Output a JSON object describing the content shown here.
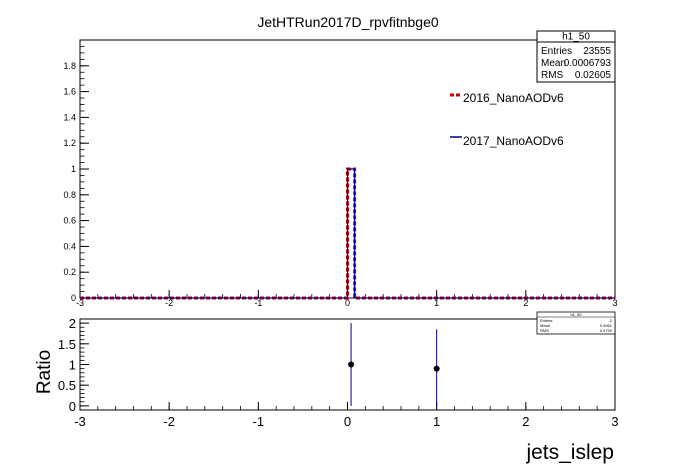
{
  "title": "JetHTRun2017D_rpvfitnbge0",
  "colors": {
    "series_2016": "#cc0000",
    "series_2017": "#00008b",
    "ratio_points": "#000000",
    "ratio_errors": "#00008b"
  },
  "stats_box": {
    "name": "h1_50",
    "rows": [
      {
        "label": "Entries",
        "value": "23555"
      },
      {
        "label": "Mean",
        "value": "0.0006793"
      },
      {
        "label": "RMS",
        "value": "0.02605"
      }
    ]
  },
  "ratio_stats_box": {
    "name": "h1_50",
    "rows": [
      {
        "label": "Entries",
        "value": "2"
      },
      {
        "label": "Mean",
        "value": "0.4961"
      },
      {
        "label": "RMS",
        "value": "0.4750"
      }
    ]
  },
  "legend": [
    {
      "label": "2016_NanoAODv6",
      "style": "dashed",
      "color": "#cc0000"
    },
    {
      "label": "2017_NanoAODv6",
      "style": "solid",
      "color": "#00008b"
    }
  ],
  "chart_data": [
    {
      "type": "step",
      "title": "JetHTRun2017D_rpvfitnbge0",
      "xlim": [
        -3,
        3
      ],
      "ylim": [
        0,
        2
      ],
      "x_ticks": [
        "-3",
        "-2",
        "-1",
        "0",
        "1",
        "2",
        "3"
      ],
      "y_ticks": [
        "0",
        "0.2",
        "0.4",
        "0.6",
        "0.8",
        "1",
        "1.2",
        "1.4",
        "1.6",
        "1.8"
      ],
      "bin_edges": [
        0,
        0.08
      ],
      "series": [
        {
          "name": "2016_NanoAODv6",
          "values": [
            1.0
          ],
          "style": "dashed"
        },
        {
          "name": "2017_NanoAODv6",
          "values": [
            1.0
          ],
          "style": "solid"
        }
      ]
    },
    {
      "type": "scatter",
      "xlabel": "jets_islep",
      "ylabel": "Ratio",
      "xlim": [
        -3,
        3
      ],
      "ylim": [
        -0.1,
        2.1
      ],
      "x_ticks": [
        "-3",
        "-2",
        "-1",
        "0",
        "1",
        "2",
        "3"
      ],
      "y_ticks": [
        "0",
        "0.5",
        "1",
        "1.5",
        "2"
      ],
      "points": [
        {
          "x": 0.04,
          "y": 1.0,
          "err_low": 1.0,
          "err_high": 1.0
        },
        {
          "x": 1.0,
          "y": 0.9,
          "err_low": 0.9,
          "err_high": 0.95
        }
      ]
    }
  ]
}
